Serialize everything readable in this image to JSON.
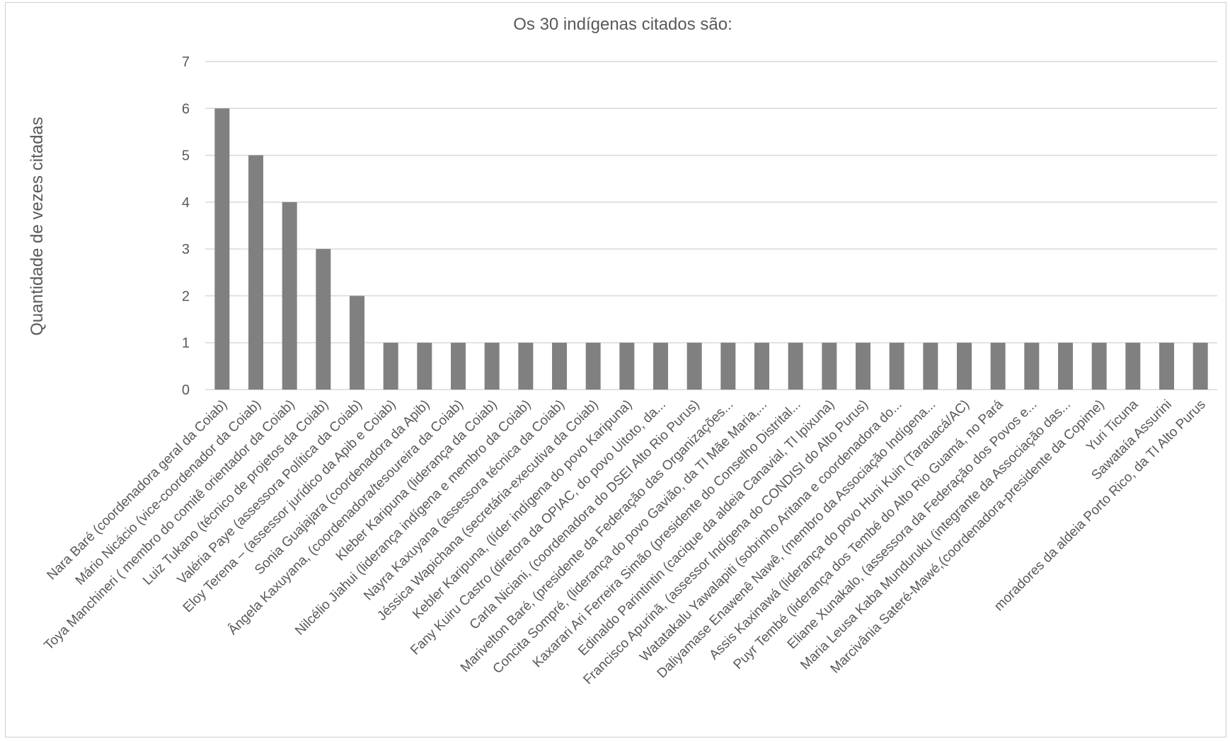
{
  "chart_data": {
    "type": "bar",
    "title": "Os 30 indígenas citados são:",
    "xlabel": "",
    "ylabel": "Quantidade de vezes citadas",
    "ylim": [
      0,
      7
    ],
    "yticks": [
      0,
      1,
      2,
      3,
      4,
      5,
      6,
      7
    ],
    "grid": true,
    "legend": "none",
    "bar_color": "#808080",
    "grid_color": "#d9d9d9",
    "text_color": "#595959",
    "categories": [
      "Nara Baré (coordenadora geral da Coiab)",
      "Mário Nicácio (vice-coordenador da Coiab)",
      "Toya Manchineri  ( membro do comitê orientador da Coiab)",
      "Luiz Tukano (técnico de projetos da Coiab)",
      "Valéria Paye (assessora Política da Coiab)",
      "Eloy Terena – (assessor jurídico da Apib e Coiab)",
      "Sonia Guajajara (coordenadora da Apib)",
      "Ângela Kaxuyana, (coordenadora/tesoureira da Coiab)",
      "Kleber Karipuna (liderança da Coiab)",
      "Nilcélio Jiahui (liderança indígena e membro da Coiab)",
      "Nayra Kaxuyana (assessora técnica da Coiab)",
      "Jéssica Wapichana (secretária-executiva da Coiab)",
      "Kebler Karipuna, (líder indígena do povo Karipuna)",
      "Fany Kuiru Castro (diretora da OPIAC, do povo Uitoto, da...",
      "Carla Niciani, (coordenadora do DSEI Alto Rio Purus)",
      "Marivelton Baré, (presidente da Federação das Organizações...",
      "Concita Sompré, (liderança do povo Gavião, da TI Mãe Maria,...",
      "Kaxarari Ari Ferreira Simão (presidente do Conselho Distrital...",
      "Edinaldo Parintintin (cacique da aldeia Canavial, TI Ipixuna)",
      "Francisco Apurinã, (assessor Indígena do CONDISI do Alto Purus)",
      "Watatakalu Yawalapiti (sobrinho Aritana e  coordenadora do...",
      "Daliyamase Enawenê Nawê, (membro da Associação Indígena...",
      "Assis Kaxinawá (liderança do povo Huni Kuin (Tarauacá/AC)",
      "Puyr Tembé (liderança dos Tembé do Alto Rio Guamá, no Pará",
      "Eliane Xunakalo, (assessora da Federação dos Povos e...",
      "Maria Leusa Kaba Munduruku (integrante da Associação das...",
      "Marcivânia Sateré-Mawé,(coordenadora-presidente da Copime)",
      "Yuri Ticuna",
      "Sawataía Assurini",
      "moradores da aldeia Porto Rico, da TI Alto Purus"
    ],
    "values": [
      6,
      5,
      4,
      3,
      2,
      1,
      1,
      1,
      1,
      1,
      1,
      1,
      1,
      1,
      1,
      1,
      1,
      1,
      1,
      1,
      1,
      1,
      1,
      1,
      1,
      1,
      1,
      1,
      1,
      1
    ]
  }
}
